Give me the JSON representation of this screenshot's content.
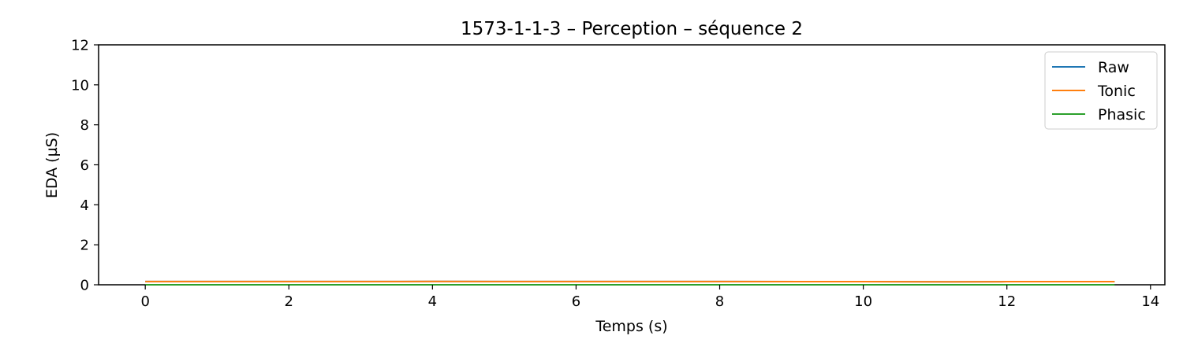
{
  "chart_data": {
    "type": "line",
    "title": "1573-1-1-3 – Perception – séquence 2",
    "xlabel": "Temps (s)",
    "ylabel": "EDA (µS)",
    "xlim": [
      -0.65,
      14.2
    ],
    "ylim": [
      0,
      12
    ],
    "xticks": [
      0,
      2,
      4,
      6,
      8,
      10,
      12,
      14
    ],
    "yticks": [
      0,
      2,
      4,
      6,
      8,
      10,
      12
    ],
    "grid": false,
    "legend_position": "top-right",
    "series": [
      {
        "name": "Raw",
        "color": "#1f77b4",
        "x": [
          0,
          2,
          4,
          6,
          8,
          10,
          11.2,
          12,
          13.5
        ],
        "y": [
          0.16,
          0.16,
          0.165,
          0.16,
          0.16,
          0.155,
          0.15,
          0.155,
          0.155
        ]
      },
      {
        "name": "Tonic",
        "color": "#ff7f0e",
        "x": [
          0,
          2,
          4,
          6,
          8,
          10,
          11.2,
          12,
          13.5
        ],
        "y": [
          0.16,
          0.16,
          0.165,
          0.16,
          0.16,
          0.155,
          0.15,
          0.155,
          0.155
        ]
      },
      {
        "name": "Phasic",
        "color": "#2ca02c",
        "x": [
          0,
          13.5
        ],
        "y": [
          0.0,
          0.0
        ]
      }
    ]
  }
}
